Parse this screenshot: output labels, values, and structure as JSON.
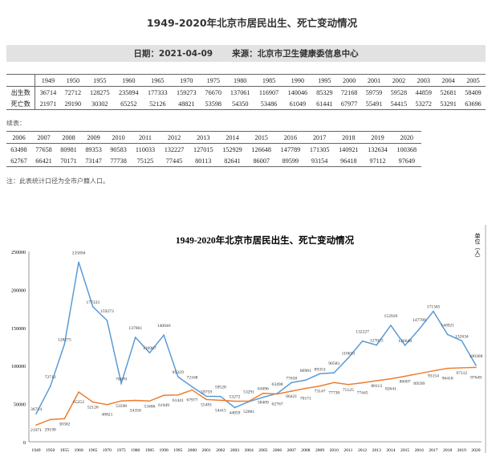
{
  "title": "1949-2020年北京市居民出生、死亡变动情况",
  "date_label": "日期：2021-04-09",
  "source_label": "来源：北京市卫生健康委信息中心",
  "table1": {
    "row_labels": [
      "出生数",
      "死亡数"
    ],
    "years": [
      "1949",
      "1950",
      "1955",
      "1960",
      "1965",
      "1970",
      "1975",
      "1980",
      "1985",
      "1990",
      "1995",
      "2000",
      "2001",
      "2002",
      "2003",
      "2004",
      "2005"
    ],
    "births": [
      "36714",
      "72712",
      "128275",
      "235894",
      "177333",
      "159273",
      "76670",
      "137061",
      "116907",
      "140046",
      "85329",
      "72168",
      "59759",
      "59528",
      "44859",
      "52681",
      "58409"
    ],
    "deaths": [
      "21971",
      "29190",
      "30302",
      "65252",
      "52126",
      "48821",
      "53598",
      "54350",
      "53486",
      "61049",
      "61441",
      "67977",
      "55491",
      "54415",
      "53272",
      "53291",
      "63696"
    ]
  },
  "continued_label": "续表：",
  "table2": {
    "years": [
      "2006",
      "2007",
      "2008",
      "2009",
      "2010",
      "2011",
      "2012",
      "2013",
      "2014",
      "2015",
      "2016",
      "2017",
      "2018",
      "2019",
      "2020"
    ],
    "births": [
      "63498",
      "77658",
      "80981",
      "89353",
      "90583",
      "110033",
      "132227",
      "127015",
      "152929",
      "126648",
      "147789",
      "171305",
      "140921",
      "132634",
      "100368"
    ],
    "deaths": [
      "62767",
      "66421",
      "70171",
      "73147",
      "77738",
      "75125",
      "77445",
      "80113",
      "82641",
      "86007",
      "89599",
      "93154",
      "96418",
      "97112",
      "97649"
    ]
  },
  "note": "注：此表统计口径为全市户籍人口。",
  "chart_data": {
    "type": "line",
    "title": "1949-2020年北京市居民出生、死亡变动情况",
    "unit_label": "单位（人）",
    "categories": [
      "1949",
      "1950",
      "1955",
      "1960",
      "1965",
      "1970",
      "1975",
      "1980",
      "1985",
      "1990",
      "1995",
      "2000",
      "2001",
      "2002",
      "2003",
      "2004",
      "2005",
      "2006",
      "2007",
      "2008",
      "2009",
      "2010",
      "2011",
      "2012",
      "2013",
      "2014",
      "2015",
      "2016",
      "2017",
      "2018",
      "2019",
      "2020"
    ],
    "y_ticks": [
      "0",
      "50000",
      "100000",
      "150000",
      "200000",
      "250000"
    ],
    "ylim": [
      0,
      250000
    ],
    "grid": false,
    "legend": "none",
    "series": [
      {
        "color": "#5b9bd5",
        "values": [
          36714,
          72712,
          128275,
          235894,
          177333,
          159273,
          76670,
          137061,
          116907,
          140046,
          85329,
          72168,
          59759,
          59528,
          44859,
          52681,
          58409,
          63498,
          77658,
          80981,
          89353,
          90583,
          110033,
          132227,
          127015,
          152929,
          126648,
          147789,
          171305,
          140921,
          132634,
          100368
        ]
      },
      {
        "color": "#ed7d31",
        "values": [
          21971,
          29190,
          30302,
          65252,
          52126,
          48821,
          53598,
          54350,
          53486,
          61049,
          61441,
          67977,
          55491,
          54415,
          53272,
          53291,
          63696,
          62767,
          66421,
          70171,
          73147,
          77738,
          75125,
          77445,
          80113,
          82641,
          86007,
          89599,
          93154,
          96418,
          97112,
          97649
        ]
      }
    ]
  }
}
